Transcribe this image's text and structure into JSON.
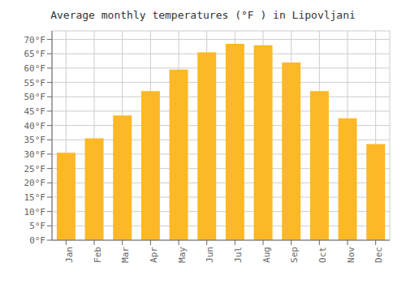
{
  "chart_data": {
    "type": "bar",
    "title": "Average monthly temperatures (°F ) in Lipovljani",
    "categories": [
      "Jan",
      "Feb",
      "Mar",
      "Apr",
      "May",
      "Jun",
      "Jul",
      "Aug",
      "Sep",
      "Oct",
      "Nov",
      "Dec"
    ],
    "values": [
      30.5,
      35.5,
      43.5,
      52.0,
      59.5,
      65.5,
      68.5,
      68.0,
      62.0,
      52.0,
      42.5,
      33.5
    ],
    "color": "#FDB827",
    "ylim": [
      0,
      73
    ],
    "yticks": [
      {
        "value": 0,
        "label": "0°F"
      },
      {
        "value": 5,
        "label": "5°F"
      },
      {
        "value": 10,
        "label": "10°F"
      },
      {
        "value": 15,
        "label": "15°F"
      },
      {
        "value": 20,
        "label": "20°F"
      },
      {
        "value": 25,
        "label": "25°F"
      },
      {
        "value": 30,
        "label": "30°F"
      },
      {
        "value": 35,
        "label": "35°F"
      },
      {
        "value": 40,
        "label": "40°F"
      },
      {
        "value": 45,
        "label": "45°F"
      },
      {
        "value": 50,
        "label": "50°F"
      },
      {
        "value": 55,
        "label": "55°F"
      },
      {
        "value": 60,
        "label": "60°F"
      },
      {
        "value": 65,
        "label": "65°F"
      },
      {
        "value": 70,
        "label": "70°F"
      }
    ],
    "grid": true
  }
}
